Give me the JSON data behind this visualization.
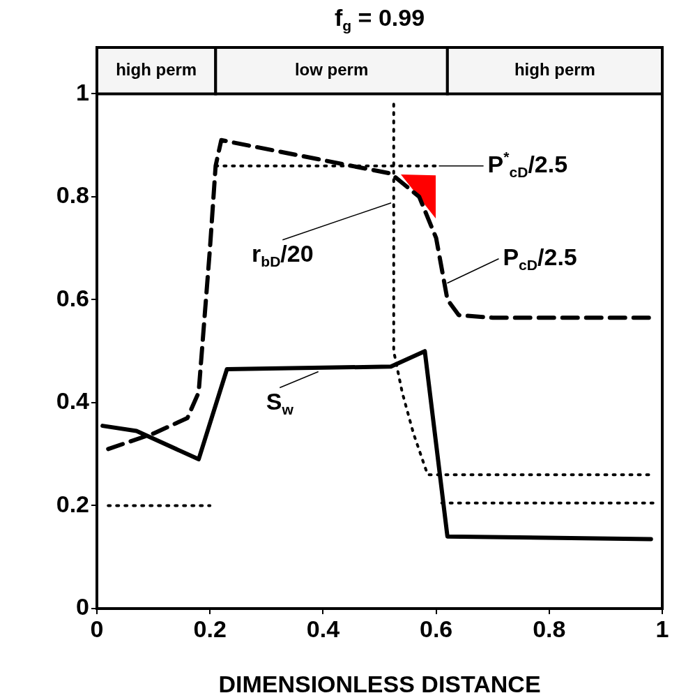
{
  "chart_data": {
    "type": "line",
    "title": "f$_{g}$ = 0.99",
    "xlabel": "DIMENSIONLESS DISTANCE",
    "xlim": [
      0,
      1
    ],
    "xticks": [
      0,
      0.2,
      0.4,
      0.6,
      0.8,
      1
    ],
    "ylim": [
      0,
      1.09
    ],
    "yticks": [
      0,
      0.2,
      0.4,
      0.6,
      0.8,
      1
    ],
    "grid": false,
    "legend": false,
    "marker": "none",
    "series": [
      {
        "color": "#000000",
        "line_style": "solid",
        "x": [
          0.01,
          0.07,
          0.18,
          0.23,
          0.52,
          0.58,
          0.62,
          0.98
        ],
        "values": [
          0.355,
          0.345,
          0.29,
          0.465,
          0.47,
          0.5,
          0.14,
          0.135
        ]
      },
      {
        "color": "#000000",
        "line_style": "dashed",
        "x": [
          0.02,
          0.1,
          0.16,
          0.18,
          0.2,
          0.21,
          0.22,
          0.52,
          0.57,
          0.6,
          0.62,
          0.64,
          0.7,
          0.98
        ],
        "values": [
          0.31,
          0.34,
          0.37,
          0.42,
          0.7,
          0.86,
          0.91,
          0.845,
          0.8,
          0.72,
          0.6,
          0.57,
          0.565,
          0.565
        ]
      },
      {
        "color": "#000000",
        "line_style": "dotted",
        "x": [
          0.525,
          0.525,
          0.54,
          0.56,
          0.585,
          0.98
        ],
        "values": [
          0.98,
          0.5,
          0.42,
          0.34,
          0.26,
          0.26
        ]
      },
      {
        "color": "#000000",
        "line_style": "dotted",
        "x": [
          0.02,
          0.2,
          0.205,
          0.21,
          0.6,
          0.605,
          0.61,
          0.99
        ],
        "values": [
          0.2,
          0.2,
          null,
          0.86,
          0.86,
          null,
          0.205,
          0.205
        ]
      }
    ],
    "bands": [
      {
        "axis": "x",
        "from": 0,
        "to": 0.21,
        "label": "high perm",
        "color": "#f5f5f5"
      },
      {
        "axis": "x",
        "from": 0.21,
        "to": 0.62,
        "label": "low perm",
        "color": "#f5f5f5"
      },
      {
        "axis": "x",
        "from": 0.62,
        "to": 1,
        "label": "high perm",
        "color": "#f5f5f5"
      }
    ],
    "annotations": [
      {
        "text": "P$^{*}$$_{cD}$/2.5",
        "x": 0.6,
        "y": 0.86
      },
      {
        "text": "r$_{bD}$/20",
        "x": 0.525,
        "y": 0.79
      },
      {
        "text": "P$_{cD}$/2.5",
        "x": 0.615,
        "y": 0.63
      },
      {
        "text": "S$_{w}$",
        "x": 0.396,
        "y": 0.463
      }
    ]
  }
}
